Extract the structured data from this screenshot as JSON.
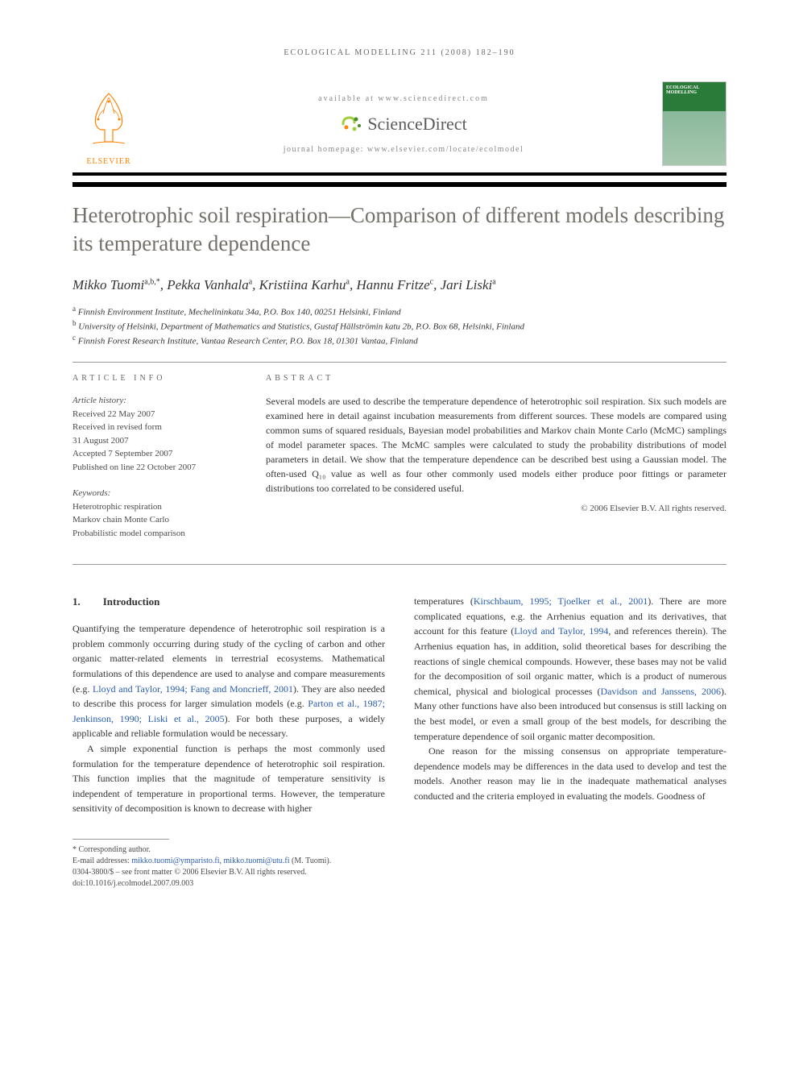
{
  "running_header": "ECOLOGICAL MODELLING 211 (2008) 182–190",
  "banner": {
    "available_text": "available at www.sciencedirect.com",
    "sciencedirect": "ScienceDirect",
    "journal_homepage": "journal homepage: www.elsevier.com/locate/ecolmodel",
    "elsevier": "ELSEVIER",
    "cover_title": "ECOLOGICAL MODELLING"
  },
  "title": "Heterotrophic soil respiration—Comparison of different models describing its temperature dependence",
  "authors_html": "Mikko Tuomi",
  "authors": [
    {
      "name": "Mikko Tuomi",
      "sup": "a,b,*"
    },
    {
      "name": "Pekka Vanhala",
      "sup": "a"
    },
    {
      "name": "Kristiina Karhu",
      "sup": "a"
    },
    {
      "name": "Hannu Fritze",
      "sup": "c"
    },
    {
      "name": "Jari Liski",
      "sup": "a"
    }
  ],
  "affiliations": [
    {
      "sup": "a",
      "text": "Finnish Environment Institute, Mechelininkatu 34a, P.O. Box 140, 00251 Helsinki, Finland"
    },
    {
      "sup": "b",
      "text": "University of Helsinki, Department of Mathematics and Statistics, Gustaf Hällströmin katu 2b, P.O. Box 68, Helsinki, Finland"
    },
    {
      "sup": "c",
      "text": "Finnish Forest Research Institute, Vantaa Research Center, P.O. Box 18, 01301 Vantaa, Finland"
    }
  ],
  "article_info_label": "ARTICLE INFO",
  "abstract_label": "ABSTRACT",
  "history_label": "Article history:",
  "history": [
    "Received 22 May 2007",
    "Received in revised form",
    "31 August 2007",
    "Accepted 7 September 2007",
    "Published on line 22 October 2007"
  ],
  "keywords_label": "Keywords:",
  "keywords": [
    "Heterotrophic respiration",
    "Markov chain Monte Carlo",
    "Probabilistic model comparison"
  ],
  "abstract": "Several models are used to describe the temperature dependence of heterotrophic soil respiration. Six such models are examined here in detail against incubation measurements from different sources. These models are compared using common sums of squared residuals, Bayesian model probabilities and Markov chain Monte Carlo (McMC) samplings of model parameter spaces. The McMC samples were calculated to study the probability distributions of model parameters in detail. We show that the temperature dependence can be described best using a Gaussian model. The often-used Q₁₀ value as well as four other commonly used models either produce poor fittings or parameter distributions too correlated to be considered useful.",
  "copyright": "© 2006 Elsevier B.V. All rights reserved.",
  "section1": {
    "num": "1.",
    "title": "Introduction"
  },
  "col1": {
    "p1a": "Quantifying the temperature dependence of heterotrophic soil respiration is a problem commonly occurring during study of the cycling of carbon and other organic matter-related elements in terrestrial ecosystems. Mathematical formulations of this dependence are used to analyse and compare measurements (e.g. ",
    "p1_ref1": "Lloyd and Taylor, 1994; Fang and Moncrieff, 2001",
    "p1b": "). They are also needed to describe this process for larger simulation models (e.g. ",
    "p1_ref2": "Parton et al., 1987; Jenkinson, 1990; Liski et al., 2005",
    "p1c": "). For both these purposes, a widely applicable and reliable formulation would be necessary.",
    "p2": "A simple exponential function is perhaps the most commonly used formulation for the temperature dependence of heterotrophic soil respiration. This function implies that the magnitude of temperature sensitivity is independent of temperature in proportional terms. However, the temperature sensitivity of decomposition is known to decrease with higher"
  },
  "col2": {
    "p1a": "temperatures (",
    "p1_ref1": "Kirschbaum, 1995; Tjoelker et al., 2001",
    "p1b": "). There are more complicated equations, e.g. the Arrhenius equation and its derivatives, that account for this feature (",
    "p1_ref2": "Lloyd and Taylor, 1994",
    "p1c": ", and references therein). The Arrhenius equation has, in addition, solid theoretical bases for describing the reactions of single chemical compounds. However, these bases may not be valid for the decomposition of soil organic matter, which is a product of numerous chemical, physical and biological processes (",
    "p1_ref3": "Davidson and Janssens, 2006",
    "p1d": "). Many other functions have also been introduced but consensus is still lacking on the best model, or even a small group of the best models, for describing the temperature dependence of soil organic matter decomposition.",
    "p2": "One reason for the missing consensus on appropriate temperature-dependence models may be differences in the data used to develop and test the models. Another reason may lie in the inadequate mathematical analyses conducted and the criteria employed in evaluating the models. Goodness of"
  },
  "footnotes": {
    "corresponding": "* Corresponding author.",
    "email_label": "E-mail addresses: ",
    "email1": "mikko.tuomi@ymparisto.fi",
    "email_sep": ", ",
    "email2": "mikko.tuomi@utu.fi",
    "email_suffix": " (M. Tuomi).",
    "issn": "0304-3800/$ – see front matter © 2006 Elsevier B.V. All rights reserved.",
    "doi": "doi:10.1016/j.ecolmodel.2007.09.003"
  },
  "colors": {
    "title_color": "#74706a",
    "link_color": "#2a5db0",
    "elsevier_orange": "#ff8200",
    "rule_black": "#000000",
    "rule_grey": "#999999"
  }
}
